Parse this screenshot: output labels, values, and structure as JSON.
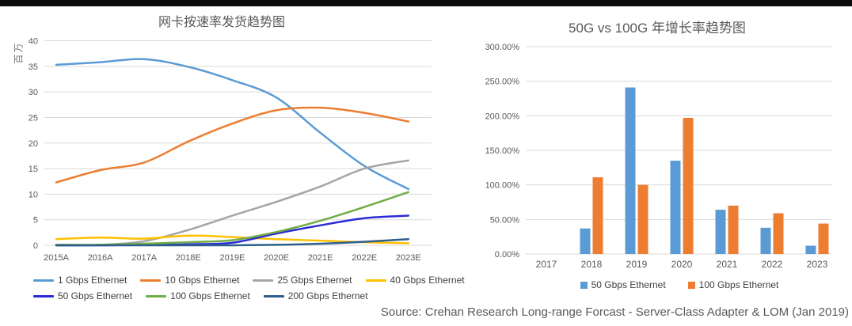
{
  "chart_data": [
    {
      "type": "line",
      "title": "网卡按速率发货趋势图",
      "xlabel": "",
      "ylabel": "百万",
      "categories": [
        "2015A",
        "2016A",
        "2017A",
        "2018E",
        "2019E",
        "2020E",
        "2021E",
        "2022E",
        "2023E"
      ],
      "ylim": [
        0,
        40
      ],
      "ytick_step": 5,
      "y_tick_labels": [
        "0",
        "5",
        "10",
        "15",
        "20",
        "25",
        "30",
        "35",
        "40"
      ],
      "grid": true,
      "legend_position": "bottom",
      "series": [
        {
          "name": "1 Gbps Ethernet",
          "color": "#5B9BD5",
          "values": [
            35.3,
            35.8,
            36.4,
            34.9,
            32.3,
            28.9,
            22.0,
            15.5,
            11.0
          ]
        },
        {
          "name": "10 Gbps Ethernet",
          "color": "#ED7D31",
          "values": [
            12.3,
            14.7,
            16.2,
            20.3,
            23.8,
            26.4,
            26.9,
            25.9,
            24.2
          ]
        },
        {
          "name": "25 Gbps Ethernet",
          "color": "#A5A5A5",
          "values": [
            0.0,
            0.1,
            0.8,
            3.0,
            5.8,
            8.5,
            11.5,
            15.0,
            16.6
          ]
        },
        {
          "name": "40 Gbps Ethernet",
          "color": "#FFC000",
          "values": [
            1.2,
            1.5,
            1.3,
            1.9,
            1.6,
            1.2,
            0.9,
            0.6,
            0.4
          ]
        },
        {
          "name": "50 Gbps Ethernet",
          "color": "#2B2BD5",
          "values": [
            0.0,
            0.0,
            0.1,
            0.2,
            0.5,
            2.3,
            3.9,
            5.3,
            5.8
          ]
        },
        {
          "name": "100 Gbps Ethernet",
          "color": "#70AD47",
          "values": [
            0.1,
            0.1,
            0.3,
            0.6,
            1.0,
            2.6,
            4.8,
            7.5,
            10.4
          ]
        },
        {
          "name": "200 Gbps Ethernet",
          "color": "#2E5E8C",
          "values": [
            0.0,
            0.0,
            0.0,
            0.0,
            0.0,
            0.1,
            0.3,
            0.7,
            1.2
          ]
        }
      ]
    },
    {
      "type": "bar",
      "title": "50G vs 100G 年增长率趋势图",
      "xlabel": "",
      "ylabel": "",
      "categories": [
        "2017",
        "2018",
        "2019",
        "2020",
        "2021",
        "2022",
        "2023"
      ],
      "ylim": [
        0,
        300
      ],
      "ytick_step": 50,
      "y_tick_labels": [
        "0.00%",
        "50.00%",
        "100.00%",
        "150.00%",
        "200.00%",
        "250.00%",
        "300.00%"
      ],
      "grid": true,
      "legend_position": "bottom",
      "series": [
        {
          "name": "50 Gbps Ethernet",
          "color": "#5B9BD5",
          "values": [
            0,
            37,
            241,
            135,
            64,
            38,
            12
          ]
        },
        {
          "name": "100 Gbps Ethernet",
          "color": "#ED7D31",
          "values": [
            0,
            111,
            100,
            197,
            70,
            59,
            44
          ]
        }
      ]
    }
  ],
  "source": "Source: Crehan Research Long-range Forcast - Server-Class Adapter & LOM (Jan 2019)",
  "colors": {
    "top_bar": "#0B0B0B",
    "grid": "#D9D9D9",
    "axis_text": "#595959",
    "title_text": "#595959",
    "legend_text": "#404040"
  }
}
